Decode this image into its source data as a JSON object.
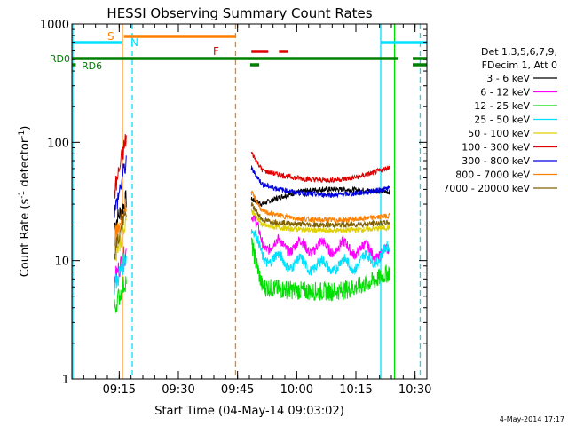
{
  "chart_data": {
    "type": "line",
    "title": "HESSI Observing Summary Count Rates",
    "xlabel": "Start Time (04-May-14 09:03:02)",
    "ylabel_main": "Count Rate (s",
    "ylabel_sup1": "-1",
    "ylabel_mid": " detector",
    "ylabel_sup2": "-1",
    "ylabel_end": ")",
    "yscale": "log",
    "ylim": [
      1,
      1000
    ],
    "xlim_minutes": [
      0,
      90
    ],
    "x_ticks": [
      {
        "t": 12,
        "label": "09:15"
      },
      {
        "t": 27,
        "label": "09:30"
      },
      {
        "t": 42,
        "label": "09:45"
      },
      {
        "t": 57,
        "label": "10:00"
      },
      {
        "t": 72,
        "label": "10:15"
      },
      {
        "t": 87,
        "label": "10:30"
      }
    ],
    "y_ticks": [
      {
        "v": 1,
        "label": "1"
      },
      {
        "v": 10,
        "label": "10"
      },
      {
        "v": 100,
        "label": "100"
      },
      {
        "v": 1000,
        "label": "1000"
      }
    ],
    "legend_header": [
      "Det 1,3,5,6,7,9,",
      "FDecim 1, Att 0"
    ],
    "series": [
      {
        "name": "3 - 6 keV",
        "color": "#000000",
        "a": [
          20,
          33
        ],
        "b": [
          33,
          30,
          40,
          38
        ]
      },
      {
        "name": "6 - 12 keV",
        "color": "#ff00ff",
        "a": [
          7,
          12
        ],
        "b": [
          24,
          14,
          13,
          11
        ]
      },
      {
        "name": "12 - 25 keV",
        "color": "#00e000",
        "a": [
          4,
          7
        ],
        "b": [
          14,
          6,
          5.5,
          8
        ]
      },
      {
        "name": "25 - 50 keV",
        "color": "#00e0ff",
        "a": [
          6,
          11
        ],
        "b": [
          18,
          11,
          9,
          12
        ]
      },
      {
        "name": "50 - 100 keV",
        "color": "#e0d000",
        "a": [
          11,
          20
        ],
        "b": [
          27,
          20,
          18,
          19
        ]
      },
      {
        "name": "100 - 300 keV",
        "color": "#e00000",
        "a": [
          38,
          110
        ],
        "b": [
          82,
          58,
          48,
          62
        ]
      },
      {
        "name": "300 - 800 keV",
        "color": "#0000e0",
        "a": [
          25,
          70
        ],
        "b": [
          60,
          44,
          36,
          41
        ]
      },
      {
        "name": "800 - 7000 keV",
        "color": "#ff8000",
        "a": [
          15,
          30
        ],
        "b": [
          38,
          26,
          22,
          24
        ]
      },
      {
        "name": "7000 - 20000 keV",
        "color": "#806000",
        "a": [
          12,
          25
        ],
        "b": [
          30,
          22,
          20,
          21
        ]
      }
    ],
    "segments": {
      "a_start": 10.8,
      "a_end": 13.8,
      "b_start": 45.5,
      "b_end": 80.5
    },
    "flags": {
      "S_label": "S",
      "N_label": "N",
      "F_label": "F",
      "RD0_label": "RD0",
      "RD6_label": "RD6",
      "S_spans": [
        [
          13.2,
          41.5
        ]
      ],
      "N_spans": [
        [
          0,
          12.8
        ],
        [
          78.3,
          90
        ]
      ],
      "F_spans": [
        [
          45.5,
          49.8
        ],
        [
          52.5,
          54.8
        ]
      ],
      "RD0_spans": [
        [
          0,
          82.8
        ],
        [
          86.4,
          90
        ]
      ],
      "RD6_spans": [
        [
          0,
          1
        ],
        [
          45.2,
          47.5
        ],
        [
          86.4,
          90
        ]
      ]
    },
    "vlines": [
      {
        "t": 0,
        "color": "#00e0ff",
        "style": "solid"
      },
      {
        "t": 12.8,
        "color": "#ff8000",
        "style": "solid"
      },
      {
        "t": 15.3,
        "color": "#00e0ff",
        "style": "dashed"
      },
      {
        "t": 41.5,
        "color": "#ff8000",
        "style": "dashed"
      },
      {
        "t": 78.3,
        "color": "#00e0ff",
        "style": "solid"
      },
      {
        "t": 81.8,
        "color": "#00e000",
        "style": "solid"
      },
      {
        "t": 88.3,
        "color": "#00e0ff",
        "style": "dashed"
      }
    ],
    "timestamp": "4-May-2014 17:17"
  }
}
